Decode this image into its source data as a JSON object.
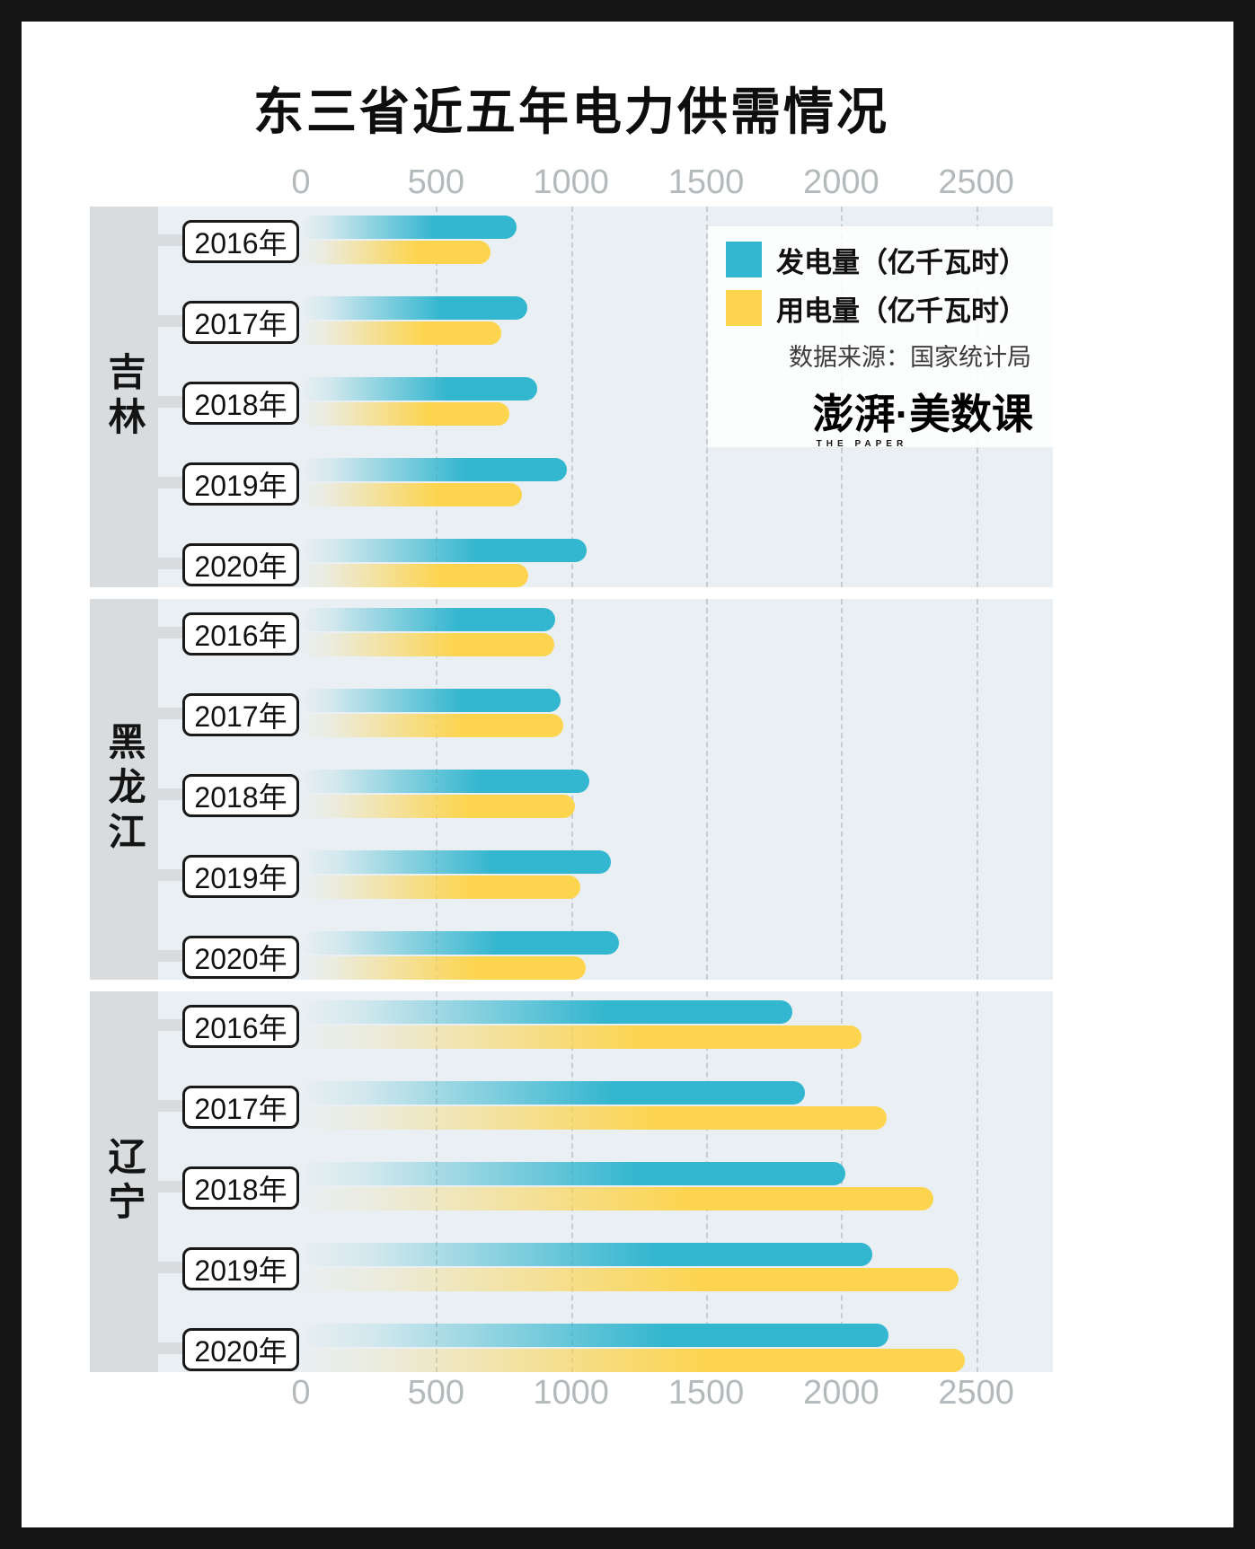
{
  "title": "东三省近五年电力供需情况",
  "legend": {
    "items": [
      {
        "name": "generation",
        "label": "发电量（亿千瓦时）",
        "color": "#33b6cf"
      },
      {
        "name": "consumption",
        "label": "用电量（亿千瓦时）",
        "color": "#fdd44d"
      }
    ]
  },
  "source": "数据来源：国家统计局",
  "logo": {
    "left": "澎湃",
    "right": "·美数课",
    "sub": "THE PAPER"
  },
  "axis": {
    "ticks": [
      0,
      500,
      1000,
      1500,
      2000,
      2500
    ],
    "range": [
      0,
      2500
    ]
  },
  "chart_data": {
    "type": "bar",
    "orientation": "horizontal",
    "unit": "亿千瓦时",
    "title": "东三省近五年电力供需情况",
    "categories": [
      "2016年",
      "2017年",
      "2018年",
      "2019年",
      "2020年"
    ],
    "legend_position": "top-right",
    "grid": "dashed-vertical",
    "groups": [
      {
        "province": "吉林",
        "series": [
          {
            "name": "发电量",
            "values": [
              757,
              797,
              836,
              943,
              1019
            ]
          },
          {
            "name": "用电量",
            "values": [
              663,
              702,
              731,
              778,
              802
            ]
          }
        ]
      },
      {
        "province": "黑龙江",
        "series": [
          {
            "name": "发电量",
            "values": [
              901,
              920,
              1028,
              1107,
              1137
            ]
          },
          {
            "name": "用电量",
            "values": [
              898,
              932,
              976,
              996,
              1015
            ]
          }
        ]
      },
      {
        "province": "辽宁",
        "series": [
          {
            "name": "发电量",
            "values": [
              1780,
              1825,
              1977,
              2076,
              2134
            ]
          },
          {
            "name": "用电量",
            "values": [
              2036,
              2128,
              2302,
              2394,
              2418
            ]
          }
        ]
      }
    ]
  }
}
